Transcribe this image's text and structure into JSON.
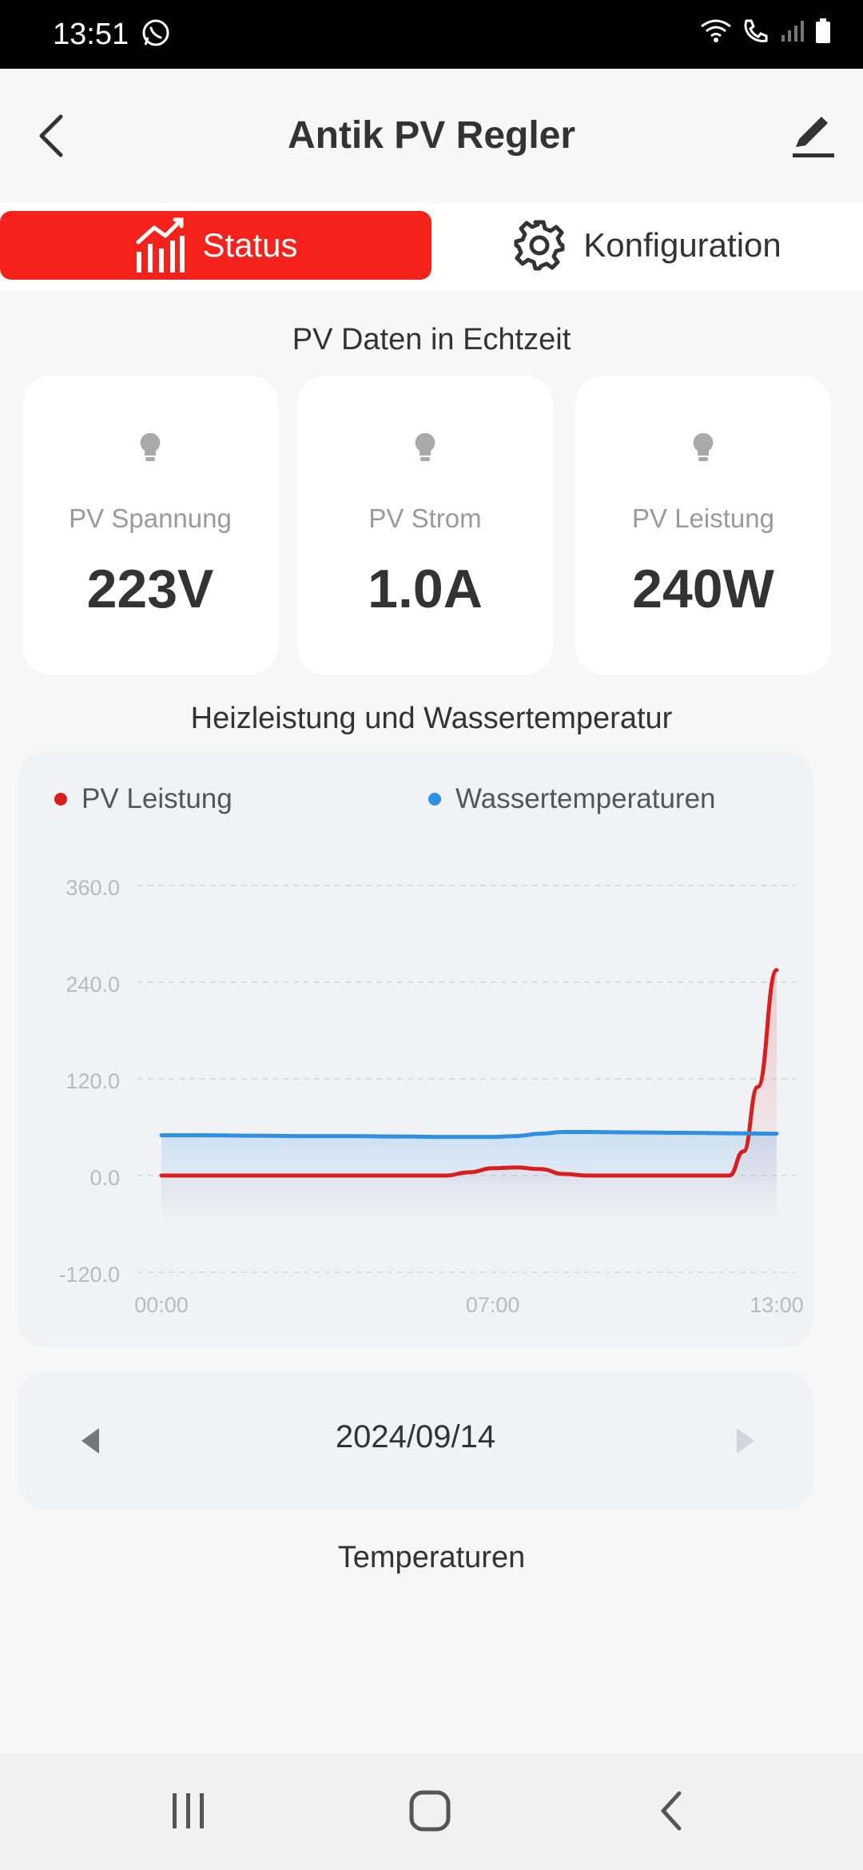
{
  "status_bar": {
    "time": "13:51"
  },
  "header": {
    "title": "Antik PV Regler"
  },
  "tabs": [
    {
      "label": "Status",
      "active": true
    },
    {
      "label": "Konfiguration",
      "active": false
    }
  ],
  "realtime": {
    "title": "PV Daten in Echtzeit",
    "cards": [
      {
        "label": "PV Spannung",
        "value": "223V",
        "icon": "bulb-icon"
      },
      {
        "label": "PV Strom",
        "value": "1.0A",
        "icon": "bulb-icon"
      },
      {
        "label": "PV Leistung",
        "value": "240W",
        "icon": "bulb-icon"
      }
    ]
  },
  "chart_section": {
    "title": "Heizleistung und Wassertemperatur"
  },
  "chart_data": {
    "type": "line",
    "title": "",
    "xlabel": "",
    "ylabel": "",
    "ylim": [
      -120,
      360
    ],
    "yticks": [
      "360.0",
      "240.0",
      "120.0",
      "0.0",
      "-120.0"
    ],
    "ytick_values": [
      360,
      240,
      120,
      0,
      -120
    ],
    "xlim": [
      0,
      13
    ],
    "xticks": [
      "00:00",
      "07:00",
      "13:00"
    ],
    "xtick_values": [
      0,
      7,
      13
    ],
    "grid": true,
    "legend_position": "top",
    "series": [
      {
        "name": "PV Leistung",
        "color": "#d81e1e",
        "x": [
          0,
          1,
          2,
          3,
          4,
          5,
          6,
          6.5,
          7,
          7.5,
          8,
          8.5,
          9,
          10,
          11,
          11.5,
          12,
          12.3,
          12.6,
          13
        ],
        "y": [
          0,
          0,
          0,
          0,
          0,
          0,
          0,
          4,
          9,
          10,
          8,
          2,
          0,
          0,
          0,
          0,
          0,
          30,
          110,
          255
        ]
      },
      {
        "name": "Wassertemperaturen",
        "color": "#2f8fe0",
        "x": [
          0,
          1,
          2,
          3,
          4,
          5,
          6,
          7,
          7.5,
          8,
          8.5,
          9,
          10,
          11,
          12,
          13
        ],
        "y": [
          50,
          50,
          49.5,
          49,
          49,
          48.5,
          48,
          48,
          49,
          52,
          54,
          54,
          53.5,
          53,
          52.5,
          52
        ]
      }
    ]
  },
  "date_selector": {
    "date": "2024/09/14"
  },
  "temperature_section": {
    "title": "Temperaturen"
  },
  "colors": {
    "accent": "#f5221c",
    "pv_line": "#d81e1e",
    "water_line": "#2f8fe0"
  }
}
